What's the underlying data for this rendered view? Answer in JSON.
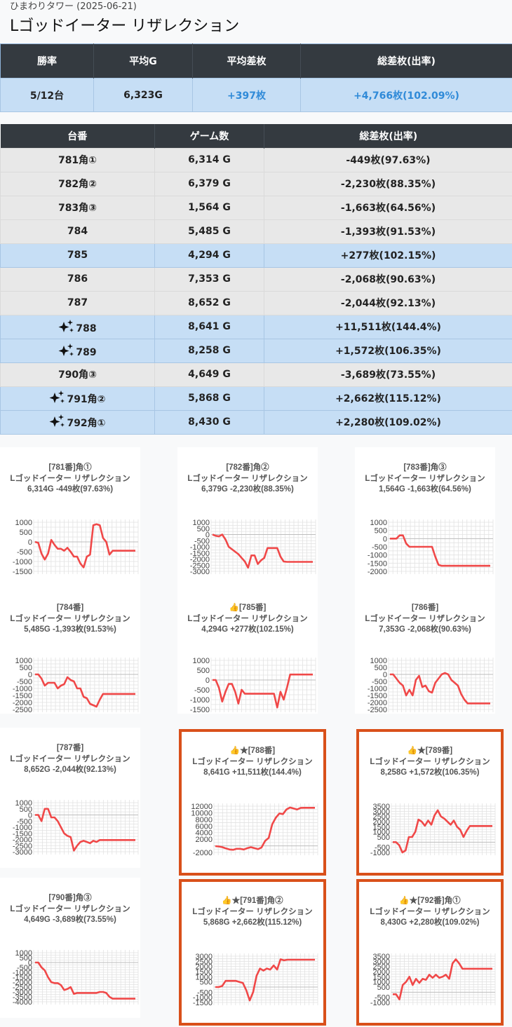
{
  "header": {
    "subtitle": "ひまわりタワー (2025-06-21)",
    "title": "Lゴッドイーター リザレクション"
  },
  "summary": {
    "headers": [
      "勝率",
      "平均G",
      "平均差枚",
      "総差枚(出率)"
    ],
    "win_rate": "5/12台",
    "avg_g": "6,323G",
    "avg_diff": "+397枚",
    "total_diff": "+4,766枚(102.09%)"
  },
  "machines": {
    "headers": [
      "台番",
      "ゲーム数",
      "総差枚(出率)"
    ],
    "rows": [
      {
        "no": "781角①",
        "games": "6,314 G",
        "diff": "-449枚(97.63%)",
        "style": "gray",
        "star": false
      },
      {
        "no": "782角②",
        "games": "6,379 G",
        "diff": "-2,230枚(88.35%)",
        "style": "gray",
        "star": false
      },
      {
        "no": "783角③",
        "games": "1,564 G",
        "diff": "-1,663枚(64.56%)",
        "style": "gray",
        "star": false
      },
      {
        "no": "784",
        "games": "5,485 G",
        "diff": "-1,393枚(91.53%)",
        "style": "gray",
        "star": false
      },
      {
        "no": "785",
        "games": "4,294 G",
        "diff": "+277枚(102.15%)",
        "style": "blue",
        "star": false
      },
      {
        "no": "786",
        "games": "7,353 G",
        "diff": "-2,068枚(90.63%)",
        "style": "gray",
        "star": false
      },
      {
        "no": "787",
        "games": "8,652 G",
        "diff": "-2,044枚(92.13%)",
        "style": "gray",
        "star": false
      },
      {
        "no": "788",
        "games": "8,641 G",
        "diff": "+11,511枚(144.4%)",
        "style": "blue",
        "star": true
      },
      {
        "no": "789",
        "games": "8,258 G",
        "diff": "+1,572枚(106.35%)",
        "style": "blue",
        "star": true
      },
      {
        "no": "790角③",
        "games": "4,649 G",
        "diff": "-3,689枚(73.55%)",
        "style": "gray",
        "star": false
      },
      {
        "no": "791角②",
        "games": "5,868 G",
        "diff": "+2,662枚(115.12%)",
        "style": "blue",
        "star": true
      },
      {
        "no": "792角①",
        "games": "8,430 G",
        "diff": "+2,280枚(109.02%)",
        "style": "blue",
        "star": true
      }
    ]
  },
  "colors": {
    "line": "#f04848",
    "highlight_border": "#d9501a",
    "header_bg": "#343a40",
    "positive_row": "#c6def5",
    "negative_row": "#e8e8e8",
    "link_blue": "#2f8ad8"
  },
  "chart_data": [
    {
      "type": "line",
      "title_lines": [
        "[781番]角①",
        "Lゴッドイーター リザレクション",
        "6,314G -449枚(97.63%)"
      ],
      "highlight": false,
      "ylim": [
        -1500,
        1000
      ],
      "yticks": [
        1000,
        500,
        0,
        -500,
        -1000,
        -1500
      ],
      "values": [
        0,
        -50,
        -600,
        -900,
        -600,
        100,
        -150,
        -350,
        -350,
        -450,
        -300,
        -500,
        -750,
        -750,
        -1100,
        -1300,
        -750,
        -650,
        850,
        900,
        850,
        200,
        0,
        -650,
        -450,
        -450,
        -450,
        -450,
        -450,
        -450,
        -450,
        -450
      ]
    },
    {
      "type": "line",
      "title_lines": [
        "[782番]角②",
        "Lゴッドイーター リザレクション",
        "6,379G -2,230枚(88.35%)"
      ],
      "highlight": false,
      "ylim": [
        -3000,
        1000
      ],
      "yticks": [
        1000,
        500,
        0,
        -500,
        -1000,
        -1500,
        -2000,
        -2500,
        -3000
      ],
      "values": [
        0,
        -100,
        -150,
        0,
        -400,
        -1000,
        -1200,
        -1400,
        -1600,
        -1900,
        -2200,
        -2700,
        -1700,
        -1700,
        -2400,
        -2100,
        -1900,
        -1100,
        -1100,
        -1100,
        -1100,
        -1800,
        -2200,
        -2230,
        -2230,
        -2230,
        -2230,
        -2230,
        -2230,
        -2230,
        -2230,
        -2230
      ]
    },
    {
      "type": "line",
      "title_lines": [
        "[783番]角③",
        "Lゴッドイーター リザレクション",
        "1,564G -1,663枚(64.56%)"
      ],
      "highlight": false,
      "ylim": [
        -2000,
        1000
      ],
      "yticks": [
        1000,
        500,
        0,
        -500,
        -1000,
        -1500,
        -2000
      ],
      "xmax": 31,
      "values": [
        0,
        0,
        0,
        200,
        200,
        -300,
        -500,
        -500,
        -500,
        -500,
        -500,
        -500,
        -500,
        -500,
        -1100,
        -1600,
        -1663,
        -1663,
        -1663,
        -1663,
        -1663,
        -1663,
        -1663,
        -1663,
        -1663,
        -1663,
        -1663,
        -1663,
        -1663,
        -1663,
        -1663,
        -1663
      ]
    },
    {
      "type": "line",
      "title_lines": [
        "[784番]",
        "Lゴッドイーター リザレクション",
        "5,485G -1,393枚(91.53%)"
      ],
      "highlight": false,
      "ylim": [
        -2500,
        1000
      ],
      "yticks": [
        1000,
        500,
        0,
        -500,
        -1000,
        -1500,
        -2000,
        -2500
      ],
      "values": [
        0,
        0,
        -300,
        -800,
        -600,
        -600,
        -600,
        -1000,
        -800,
        -700,
        -200,
        -400,
        -500,
        -1000,
        -1000,
        -1600,
        -1700,
        -2100,
        -2200,
        -2300,
        -1800,
        -1393,
        -1393,
        -1393,
        -1393,
        -1393,
        -1393,
        -1393,
        -1393,
        -1393,
        -1393,
        -1393
      ]
    },
    {
      "type": "line",
      "title_lines": [
        "👍[785番]",
        "Lゴッドイーター リザレクション",
        "4,294G +277枚(102.15%)"
      ],
      "highlight": false,
      "ylim": [
        -1500,
        1000
      ],
      "yticks": [
        1000,
        500,
        0,
        -500,
        -1000,
        -1500
      ],
      "values": [
        0,
        0,
        -400,
        -1100,
        -600,
        -200,
        -200,
        -600,
        -1200,
        -500,
        -700,
        -700,
        -700,
        -700,
        -700,
        -700,
        -700,
        -700,
        -700,
        -700,
        -1400,
        -600,
        -1000,
        -400,
        277,
        277,
        277,
        277,
        277,
        277,
        277,
        277
      ]
    },
    {
      "type": "line",
      "title_lines": [
        "[786番]",
        "Lゴッドイーター リザレクション",
        "7,353G -2,068枚(90.63%)"
      ],
      "highlight": false,
      "ylim": [
        -2500,
        1000
      ],
      "yticks": [
        1000,
        500,
        0,
        -500,
        -1000,
        -1500,
        -2000,
        -2500
      ],
      "values": [
        0,
        0,
        -300,
        -600,
        -800,
        -1500,
        -1100,
        -1500,
        -400,
        -100,
        -900,
        -800,
        -1200,
        -1300,
        -600,
        -300,
        0,
        100,
        0,
        -400,
        -600,
        -800,
        -1400,
        -1800,
        -2068,
        -2068,
        -2068,
        -2068,
        -2068,
        -2068,
        -2068,
        -2068
      ]
    },
    {
      "type": "line",
      "title_lines": [
        "[787番]",
        "Lゴッドイーター リザレクション",
        "8,652G -2,044枚(92.13%)"
      ],
      "highlight": false,
      "ylim": [
        -3000,
        1000
      ],
      "yticks": [
        1000,
        500,
        0,
        -500,
        -1000,
        -1500,
        -2000,
        -2500,
        -3000
      ],
      "values": [
        0,
        0,
        -500,
        500,
        500,
        -200,
        -200,
        -500,
        -1000,
        -1500,
        -1700,
        -1800,
        -2900,
        -2500,
        -2200,
        -2100,
        -2200,
        -2300,
        -2100,
        -2200,
        -2044,
        -2044,
        -2044,
        -2044,
        -2044,
        -2044,
        -2044,
        -2044,
        -2044,
        -2044,
        -2044,
        -2044
      ]
    },
    {
      "type": "line",
      "title_lines": [
        "👍★[788番]",
        "Lゴッドイーター リザレクション",
        "8,641G +11,511枚(144.4%)"
      ],
      "highlight": true,
      "ylim": [
        -2000,
        12000
      ],
      "yticks": [
        12000,
        10000,
        8000,
        6000,
        4000,
        2000,
        -2000
      ],
      "values": [
        -100,
        -200,
        -400,
        -800,
        -1100,
        -1200,
        -900,
        -900,
        -1100,
        -700,
        -400,
        -700,
        -1000,
        -500,
        1500,
        2400,
        6500,
        8500,
        9800,
        9600,
        11000,
        11600,
        11300,
        11000,
        11500,
        11511,
        11511,
        11511,
        11511
      ]
    },
    {
      "type": "line",
      "title_lines": [
        "👍★[789番]",
        "Lゴッドイーター リザレクション",
        "8,258G +1,572枚(106.35%)"
      ],
      "highlight": true,
      "ylim": [
        -1000,
        3500
      ],
      "yticks": [
        3500,
        3000,
        2500,
        2000,
        1500,
        1000,
        500,
        -500,
        -1000
      ],
      "values": [
        0,
        0,
        -300,
        -1000,
        -800,
        500,
        500,
        1000,
        2200,
        2000,
        1600,
        2100,
        1700,
        2600,
        3100,
        2500,
        2300,
        2000,
        1700,
        2100,
        1500,
        1200,
        500,
        1100,
        1572,
        1572,
        1572,
        1572,
        1572,
        1572,
        1572,
        1572
      ]
    },
    {
      "type": "line",
      "title_lines": [
        "[790番]角③",
        "Lゴッドイーター リザレクション",
        "4,649G -3,689枚(73.55%)"
      ],
      "highlight": false,
      "ylim": [
        -4000,
        1000
      ],
      "yticks": [
        1000,
        500,
        0,
        -500,
        -1000,
        -1500,
        -2000,
        -2500,
        -3000,
        -3500,
        -4000
      ],
      "values": [
        0,
        0,
        -500,
        -800,
        -1500,
        -2000,
        -2100,
        -2100,
        -2300,
        -2800,
        -2700,
        -2500,
        -3200,
        -3100,
        -3100,
        -3100,
        -3100,
        -3100,
        -3100,
        -3100,
        -3000,
        -3000,
        -3100,
        -3500,
        -3689,
        -3689,
        -3689,
        -3689,
        -3689,
        -3689,
        -3689,
        -3689
      ]
    },
    {
      "type": "line",
      "title_lines": [
        "👍★[791番]角②",
        "Lゴッドイーター リザレクション",
        "5,868G +2,662枚(115.12%)"
      ],
      "highlight": true,
      "ylim": [
        -1500,
        3000
      ],
      "yticks": [
        3000,
        2500,
        2000,
        1500,
        1000,
        500,
        -500,
        -1000,
        -1500
      ],
      "values": [
        0,
        0,
        100,
        600,
        600,
        600,
        600,
        500,
        400,
        -300,
        -1300,
        -500,
        1100,
        1800,
        1600,
        1800,
        1700,
        2100,
        1700,
        2700,
        2600,
        2662,
        2662,
        2662,
        2662,
        2662,
        2662,
        2662,
        2662,
        2662
      ]
    },
    {
      "type": "line",
      "title_lines": [
        "👍★[792番]角①",
        "Lゴッドイーター リザレクション",
        "8,430G +2,280枚(109.02%)"
      ],
      "highlight": true,
      "ylim": [
        -1000,
        3500
      ],
      "yticks": [
        3500,
        3000,
        2500,
        2000,
        1500,
        1000,
        500,
        -500,
        -1000
      ],
      "values": [
        -200,
        -200,
        -700,
        700,
        1000,
        1500,
        700,
        1300,
        900,
        1300,
        1200,
        1700,
        1400,
        1700,
        1400,
        1500,
        1700,
        1300,
        2800,
        3200,
        2800,
        2280,
        2280,
        2280,
        2280,
        2280,
        2280,
        2280,
        2280,
        2280,
        2280
      ]
    }
  ]
}
